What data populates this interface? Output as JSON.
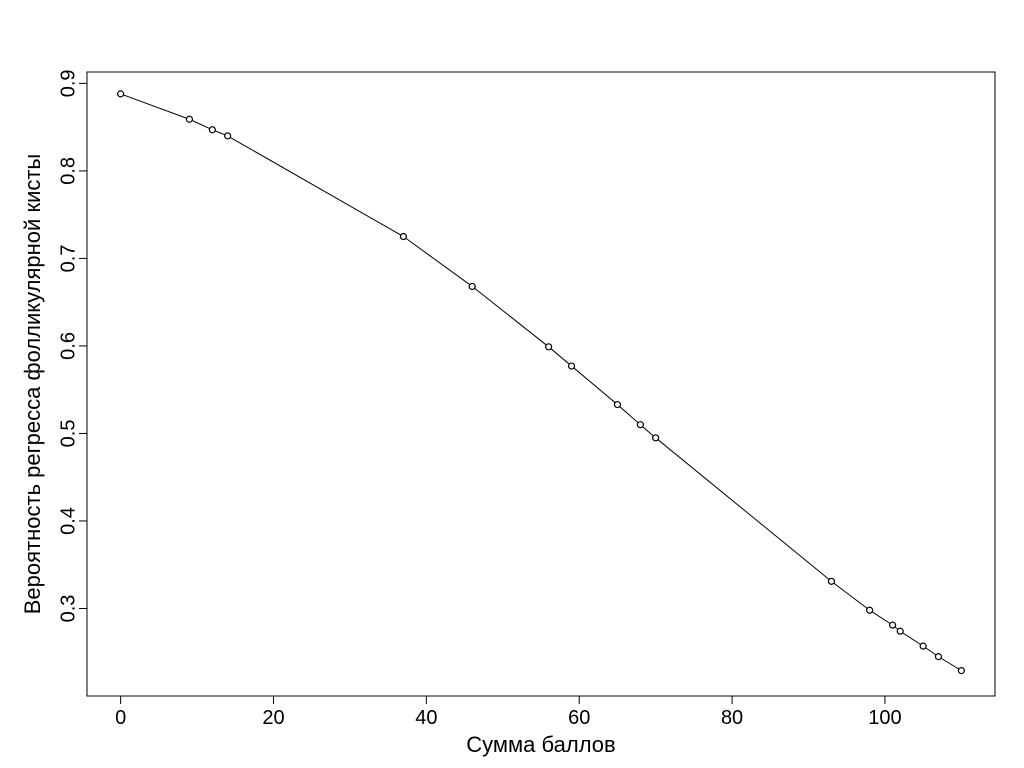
{
  "chart_data": {
    "type": "line",
    "title": "",
    "xlabel": "Сумма баллов",
    "ylabel": "Вероятность регресса фолликулярной кисты",
    "xlim": [
      -4.4,
      114.4
    ],
    "ylim": [
      0.2,
      0.913
    ],
    "x_ticks": [
      0,
      20,
      40,
      60,
      80,
      100
    ],
    "y_ticks": [
      0.3,
      0.4,
      0.5,
      0.6,
      0.7,
      0.8,
      0.9
    ],
    "x_tick_labels": [
      "0",
      "20",
      "40",
      "60",
      "80",
      "100"
    ],
    "y_tick_labels": [
      "0.3",
      "0.4",
      "0.5",
      "0.6",
      "0.7",
      "0.8",
      "0.9"
    ],
    "grid": false,
    "markers": "open-circle",
    "series": [
      {
        "x": [
          0,
          9,
          12,
          14,
          37,
          46,
          56,
          59,
          65,
          68,
          70,
          93,
          98,
          101,
          102,
          105,
          107,
          110
        ],
        "y": [
          0.888,
          0.859,
          0.847,
          0.84,
          0.725,
          0.668,
          0.599,
          0.577,
          0.533,
          0.51,
          0.495,
          0.331,
          0.298,
          0.281,
          0.274,
          0.257,
          0.245,
          0.229
        ]
      }
    ]
  }
}
